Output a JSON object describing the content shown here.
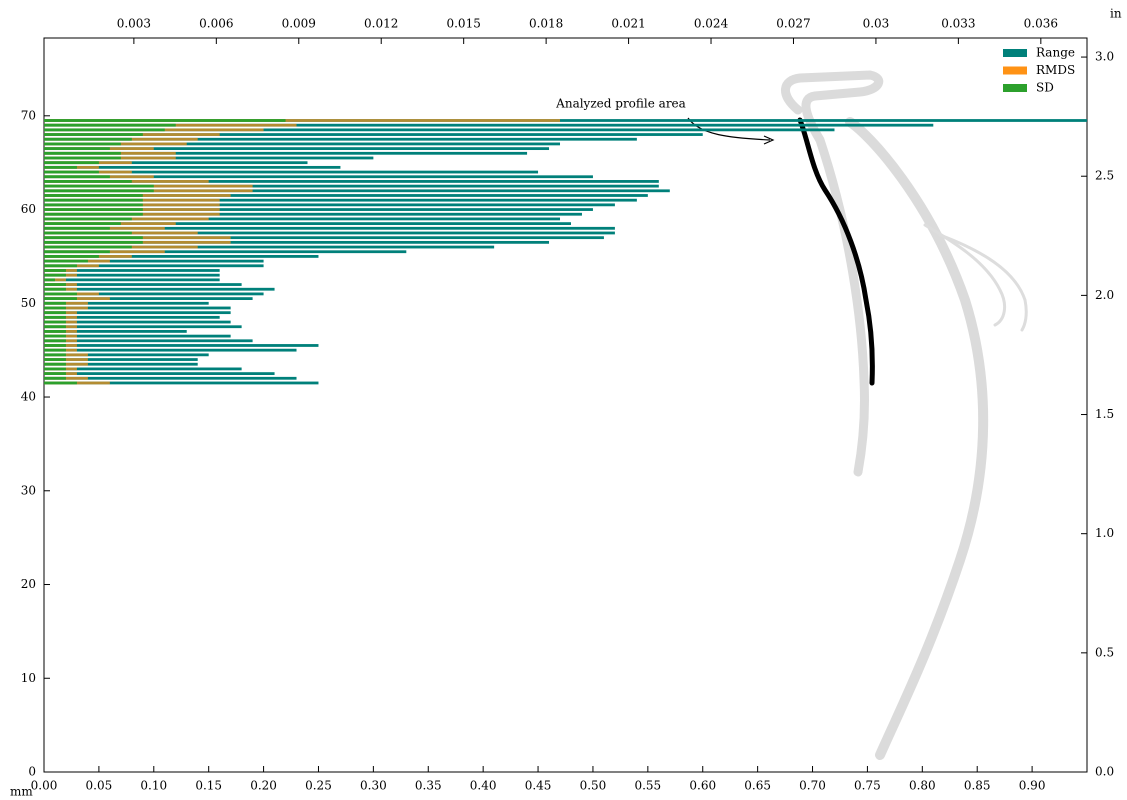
{
  "chart_data": {
    "type": "barh",
    "xlabel": "mm",
    "x2label": "in",
    "annotation": "Analyzed profile area",
    "xlim": [
      0,
      0.95
    ],
    "xticks": [
      {
        "value": 0,
        "label": "0.00"
      },
      {
        "value": 0.05,
        "label": "0.05"
      },
      {
        "value": 0.1,
        "label": "0.10"
      },
      {
        "value": 0.15,
        "label": "0.15"
      },
      {
        "value": 0.2,
        "label": "0.20"
      },
      {
        "value": 0.25,
        "label": "0.25"
      },
      {
        "value": 0.3,
        "label": "0.30"
      },
      {
        "value": 0.35,
        "label": "0.35"
      },
      {
        "value": 0.4,
        "label": "0.40"
      },
      {
        "value": 0.45,
        "label": "0.45"
      },
      {
        "value": 0.5,
        "label": "0.50"
      },
      {
        "value": 0.55,
        "label": "0.55"
      },
      {
        "value": 0.6,
        "label": "0.60"
      },
      {
        "value": 0.65,
        "label": "0.65"
      },
      {
        "value": 0.7,
        "label": "0.70"
      },
      {
        "value": 0.75,
        "label": "0.75"
      },
      {
        "value": 0.8,
        "label": "0.80"
      },
      {
        "value": 0.85,
        "label": "0.85"
      },
      {
        "value": 0.9,
        "label": "0.90"
      }
    ],
    "x2lim": [
      -0.00027,
      0.03768
    ],
    "x2ticks": [
      0.003,
      0.006,
      0.009,
      0.012,
      0.015,
      0.018,
      0.021,
      0.024,
      0.027,
      0.03,
      0.033,
      0.036
    ],
    "ylim": [
      0,
      78.3
    ],
    "yticks": [
      0,
      10,
      20,
      30,
      40,
      50,
      60,
      70
    ],
    "y2lim": [
      0,
      3.08
    ],
    "y2ticks": [
      {
        "value": 0,
        "label": "0.0"
      },
      {
        "value": 0.5,
        "label": "0.5"
      },
      {
        "value": 1,
        "label": "1.0"
      },
      {
        "value": 1.5,
        "label": "1.5"
      },
      {
        "value": 2,
        "label": "2.0"
      },
      {
        "value": 2.5,
        "label": "2.5"
      },
      {
        "value": 3,
        "label": "3.0"
      }
    ],
    "legend": "upper right",
    "y": [
      41.5,
      42,
      42.5,
      43,
      43.5,
      44,
      44.5,
      45,
      45.5,
      46,
      46.5,
      47,
      47.5,
      48,
      48.5,
      49,
      49.5,
      50,
      50.5,
      51,
      51.5,
      52,
      52.5,
      53,
      53.5,
      54,
      54.5,
      55,
      55.5,
      56,
      56.5,
      57,
      57.5,
      58,
      58.5,
      59,
      59.5,
      60,
      60.5,
      61,
      61.5,
      62,
      62.5,
      63,
      63.5,
      64,
      64.5,
      65,
      65.5,
      66,
      66.5,
      67,
      67.5,
      68,
      68.5,
      69,
      69.5
    ],
    "series": [
      {
        "name": "Range",
        "color": "#00807a",
        "values": [
          0.25,
          0.23,
          0.21,
          0.18,
          0.14,
          0.14,
          0.15,
          0.23,
          0.25,
          0.19,
          0.17,
          0.13,
          0.18,
          0.17,
          0.16,
          0.17,
          0.17,
          0.15,
          0.19,
          0.2,
          0.21,
          0.18,
          0.16,
          0.16,
          0.16,
          0.2,
          0.2,
          0.25,
          0.33,
          0.41,
          0.46,
          0.51,
          0.52,
          0.52,
          0.48,
          0.47,
          0.49,
          0.5,
          0.52,
          0.54,
          0.55,
          0.57,
          0.56,
          0.56,
          0.5,
          0.45,
          0.27,
          0.24,
          0.3,
          0.44,
          0.46,
          0.47,
          0.54,
          0.6,
          0.72,
          0.81,
          0.95
        ]
      },
      {
        "name": "RMDS",
        "color": "#ff9214",
        "values": [
          0.06,
          0.04,
          0.03,
          0.03,
          0.04,
          0.04,
          0.04,
          0.03,
          0.03,
          0.03,
          0.03,
          0.03,
          0.03,
          0.03,
          0.03,
          0.03,
          0.04,
          0.04,
          0.06,
          0.05,
          0.03,
          0.03,
          0.02,
          0.03,
          0.03,
          0.05,
          0.06,
          0.08,
          0.11,
          0.14,
          0.17,
          0.17,
          0.14,
          0.11,
          0.12,
          0.15,
          0.16,
          0.16,
          0.16,
          0.16,
          0.17,
          0.19,
          0.19,
          0.15,
          0.1,
          0.08,
          0.05,
          0.08,
          0.12,
          0.12,
          0.1,
          0.13,
          0.14,
          0.16,
          0.2,
          0.23,
          0.47
        ]
      },
      {
        "name": "SD",
        "color": "#2ca02c",
        "values": [
          0.03,
          0.02,
          0.02,
          0.02,
          0.02,
          0.02,
          0.02,
          0.02,
          0.02,
          0.02,
          0.02,
          0.02,
          0.02,
          0.02,
          0.02,
          0.02,
          0.02,
          0.02,
          0.03,
          0.03,
          0.02,
          0.02,
          0.01,
          0.02,
          0.02,
          0.03,
          0.04,
          0.05,
          0.06,
          0.08,
          0.09,
          0.09,
          0.08,
          0.06,
          0.07,
          0.08,
          0.09,
          0.09,
          0.09,
          0.09,
          0.09,
          0.1,
          0.1,
          0.08,
          0.06,
          0.05,
          0.03,
          0.05,
          0.07,
          0.07,
          0.06,
          0.07,
          0.08,
          0.09,
          0.11,
          0.12,
          0.22
        ]
      }
    ]
  }
}
